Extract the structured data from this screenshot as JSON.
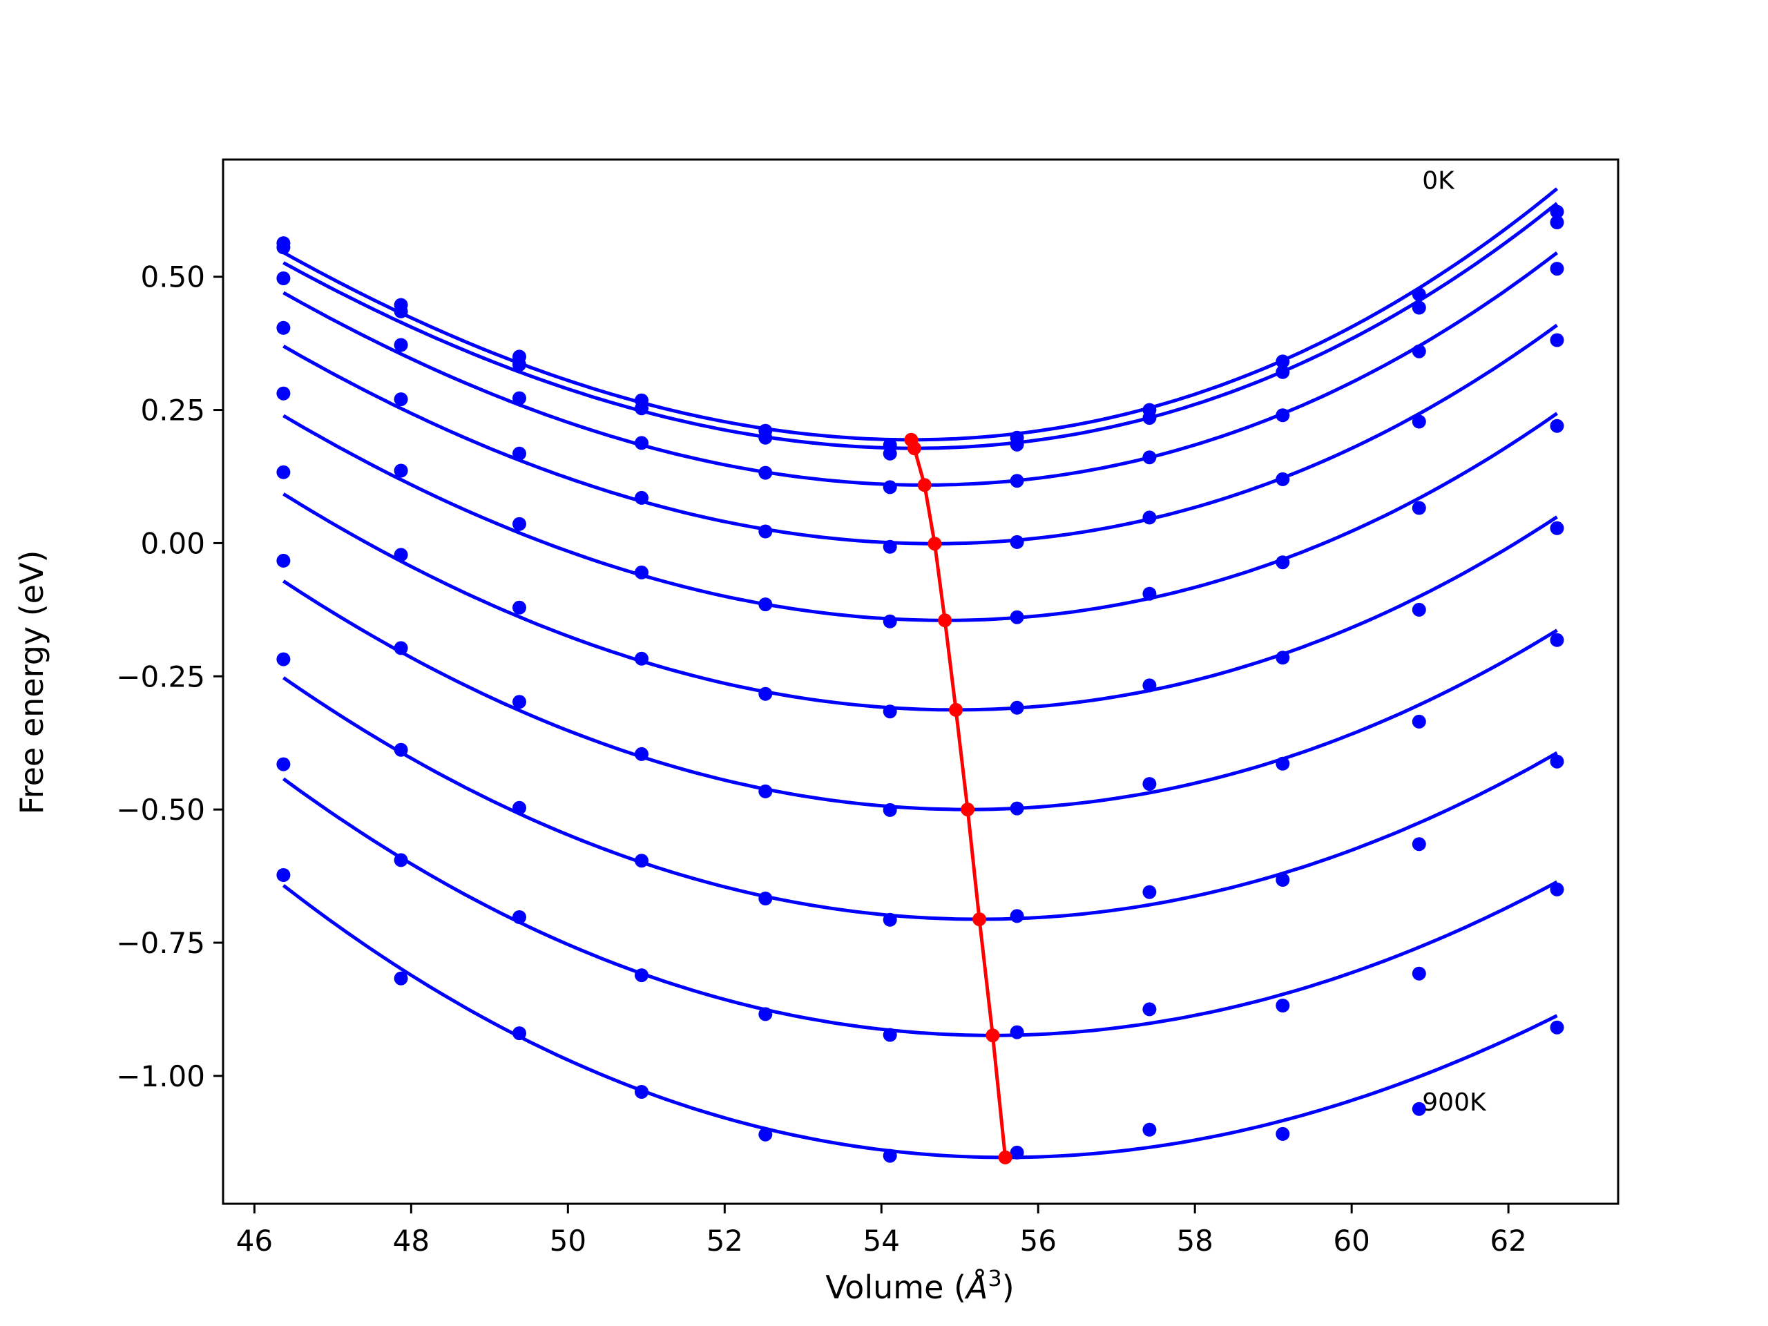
{
  "chart_data": {
    "type": "scatter",
    "xlabel_prefix": "Volume (",
    "xlabel_unit": "Å",
    "xlabel_exp": "3",
    "xlabel_suffix": ")",
    "ylabel": "Free energy (eV)",
    "xlim": [
      45.6,
      63.4
    ],
    "ylim": [
      -1.24,
      0.72
    ],
    "x_ticks": [
      46,
      48,
      50,
      52,
      54,
      56,
      58,
      60,
      62
    ],
    "y_ticks": [
      0.5,
      0.25,
      0.0,
      -0.25,
      -0.5,
      -0.75,
      -1.0
    ],
    "y_tick_labels": [
      "0.50",
      "0.25",
      "0.00",
      "−0.25",
      "−0.50",
      "−0.75",
      "−1.00"
    ],
    "annotations": [
      {
        "text": "0K",
        "x": 60.9,
        "y": 0.665
      },
      {
        "text": "900K",
        "x": 60.9,
        "y": -1.065
      }
    ],
    "curve_color": "#0000ff",
    "eq_color": "#ff0000",
    "volumes": [
      46.37,
      47.87,
      49.38,
      50.94,
      52.52,
      54.11,
      55.73,
      57.42,
      59.12,
      60.86,
      62.62
    ],
    "series": [
      {
        "points": [
          0.563,
          0.447,
          0.35,
          0.268,
          0.211,
          0.184,
          0.198,
          0.25,
          0.341,
          0.467,
          0.622
        ],
        "fit": {
          "x0": 54.38,
          "f0": 0.194,
          "a": 0.0062,
          "b": 9e-05
        }
      },
      {
        "points": [
          0.555,
          0.435,
          0.335,
          0.253,
          0.198,
          0.168,
          0.185,
          0.235,
          0.321,
          0.442,
          0.602
        ],
        "fit": {
          "x0": 54.42,
          "f0": 0.178,
          "a": 0.0061,
          "b": 9e-05
        }
      },
      {
        "points": [
          0.497,
          0.372,
          0.272,
          0.188,
          0.132,
          0.105,
          0.117,
          0.161,
          0.24,
          0.36,
          0.515
        ],
        "fit": {
          "x0": 54.55,
          "f0": 0.109,
          "a": 0.00605,
          "b": 8e-05
        }
      },
      {
        "points": [
          0.404,
          0.27,
          0.168,
          0.085,
          0.022,
          -0.007,
          0.002,
          0.048,
          0.12,
          0.228,
          0.381
        ],
        "fit": {
          "x0": 54.68,
          "f0": -0.001,
          "a": 0.00595,
          "b": 7e-05
        }
      },
      {
        "points": [
          0.281,
          0.136,
          0.036,
          -0.055,
          -0.115,
          -0.147,
          -0.139,
          -0.095,
          -0.036,
          0.066,
          0.22
        ],
        "fit": {
          "x0": 54.81,
          "f0": -0.145,
          "a": 0.0059,
          "b": 6e-05
        }
      },
      {
        "points": [
          0.133,
          -0.022,
          -0.121,
          -0.217,
          -0.283,
          -0.316,
          -0.309,
          -0.267,
          -0.215,
          -0.125,
          0.028
        ],
        "fit": {
          "x0": 54.95,
          "f0": -0.313,
          "a": 0.00585,
          "b": 4e-05
        }
      },
      {
        "points": [
          -0.033,
          -0.197,
          -0.298,
          -0.396,
          -0.466,
          -0.501,
          -0.498,
          -0.452,
          -0.414,
          -0.335,
          -0.182
        ],
        "fit": {
          "x0": 55.1,
          "f0": -0.5,
          "a": 0.0058,
          "b": 2e-05
        }
      },
      {
        "points": [
          -0.218,
          -0.388,
          -0.497,
          -0.596,
          -0.667,
          -0.707,
          -0.7,
          -0.655,
          -0.632,
          -0.565,
          -0.41
        ],
        "fit": {
          "x0": 55.25,
          "f0": -0.706,
          "a": 0.00575,
          "b": 0.0
        }
      },
      {
        "points": [
          -0.415,
          -0.595,
          -0.702,
          -0.811,
          -0.884,
          -0.923,
          -0.918,
          -0.875,
          -0.868,
          -0.808,
          -0.65
        ],
        "fit": {
          "x0": 55.42,
          "f0": -0.924,
          "a": 0.0057,
          "b": -2e-05
        }
      },
      {
        "points": [
          -0.623,
          -0.817,
          -0.92,
          -1.03,
          -1.11,
          -1.15,
          -1.144,
          -1.101,
          -1.109,
          -1.062,
          -0.909
        ],
        "fit": {
          "x0": 55.58,
          "f0": -1.153,
          "a": 0.00565,
          "b": -4e-05
        }
      }
    ],
    "equilibrium": {
      "x": [
        54.38,
        54.42,
        54.55,
        54.68,
        54.81,
        54.95,
        55.1,
        55.25,
        55.42,
        55.58
      ],
      "y": [
        0.194,
        0.178,
        0.109,
        -0.001,
        -0.145,
        -0.313,
        -0.5,
        -0.706,
        -0.924,
        -1.153
      ]
    }
  }
}
